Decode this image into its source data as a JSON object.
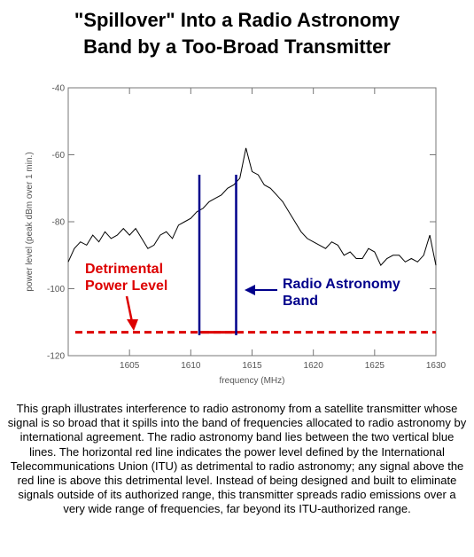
{
  "chart_data": {
    "type": "line",
    "title": [
      "\"Spillover\" Into a Radio Astronomy",
      "Band by a Too-Broad Transmitter"
    ],
    "x_label": "frequency (MHz)",
    "y_label": "power level (peak dBm over 1 min.)",
    "xlim": [
      1600,
      1630
    ],
    "xticks": [
      1605,
      1610,
      1615,
      1620,
      1625,
      1630
    ],
    "ylim": [
      -120,
      -40
    ],
    "yticks": [
      -120,
      -100,
      -80,
      -60,
      -40
    ],
    "color": "#000000",
    "x": [
      1600,
      1600.5,
      1601,
      1601.5,
      1602,
      1602.5,
      1603,
      1603.5,
      1604,
      1604.5,
      1605,
      1605.5,
      1606,
      1606.5,
      1607,
      1607.5,
      1608,
      1608.5,
      1609,
      1609.5,
      1610,
      1610.5,
      1611,
      1611.5,
      1612,
      1612.5,
      1613,
      1613.5,
      1614,
      1614.5,
      1615,
      1615.5,
      1616,
      1616.5,
      1617,
      1617.5,
      1618,
      1618.5,
      1619,
      1619.5,
      1620,
      1620.5,
      1621,
      1621.5,
      1622,
      1622.5,
      1623,
      1623.5,
      1624,
      1624.5,
      1625,
      1625.5,
      1626,
      1626.5,
      1627,
      1627.5,
      1628,
      1628.5,
      1629,
      1629.5,
      1630
    ],
    "values": [
      -92,
      -88,
      -86,
      -87,
      -84,
      -86,
      -83,
      -85,
      -84,
      -82,
      -84,
      -82,
      -85,
      -88,
      -87,
      -84,
      -83,
      -85,
      -81,
      -80,
      -79,
      -77,
      -76,
      -74,
      -73,
      -72,
      -70,
      -69,
      -67,
      -58,
      -65,
      -66,
      -69,
      -70,
      -72,
      -74,
      -77,
      -80,
      -83,
      -85,
      -86,
      -87,
      -88,
      -86,
      -87,
      -90,
      -89,
      -91,
      -91,
      -88,
      -89,
      -93,
      -91,
      -90,
      -90,
      -92,
      -91,
      -92,
      -90,
      -84,
      -93
    ],
    "band_edges": [
      1610.7,
      1613.7
    ],
    "band_color": "#00008b",
    "detrimental_level": -113,
    "detrimental_color": "#dd0000",
    "annotations": [
      {
        "lines": [
          "Detrimental",
          "Power Level"
        ],
        "color": "#dd0000"
      },
      {
        "lines": [
          "Radio Astronomy",
          "Band"
        ],
        "color": "#00008b"
      }
    ]
  },
  "caption": "This graph illustrates interference to radio astronomy from a satellite transmitter whose signal is so broad that it spills into the band of frequencies allocated to radio astronomy by international agreement. The radio astronomy band lies between the two vertical blue lines. The horizontal red line indicates the power level defined by the International Telecommunications Union (ITU) as detrimental to radio astronomy; any signal above the red line is above this detrimental level. Instead of being designed and built to eliminate signals outside of its authorized range, this transmitter spreads radio emissions over a very wide range of frequencies, far beyond its ITU-authorized range."
}
